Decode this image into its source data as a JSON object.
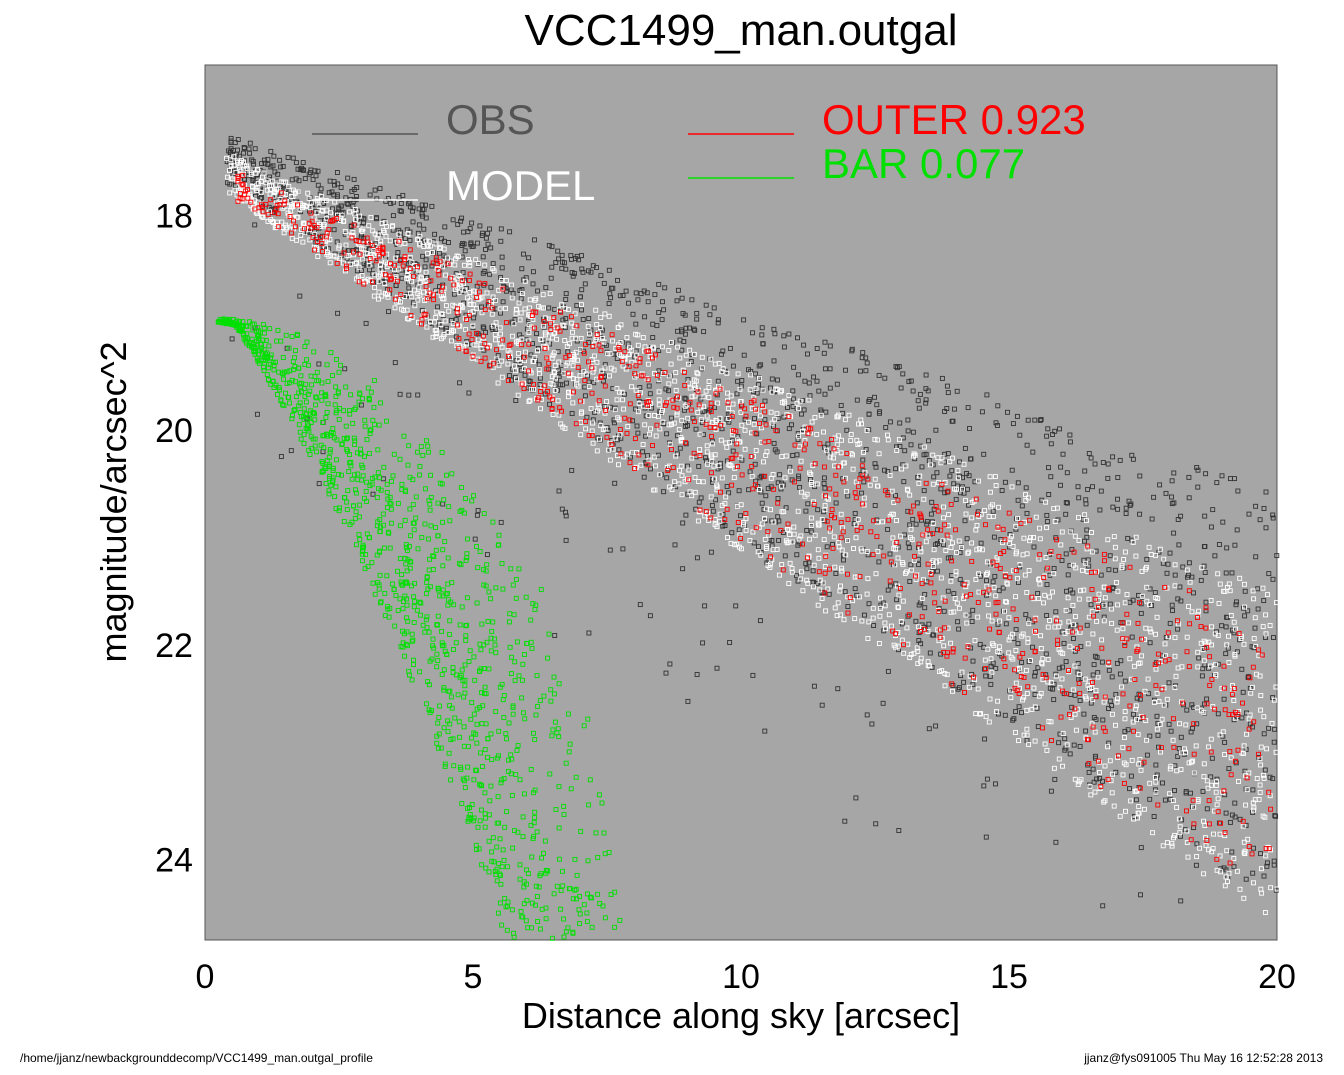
{
  "chart_data": {
    "type": "scatter",
    "title": "VCC1499_man.outgal",
    "xlabel": "Distance along sky [arcsec]",
    "ylabel": "magnitude/arcsec^2",
    "xlim": [
      0,
      20
    ],
    "ylim": [
      16.6,
      24.75
    ],
    "y_inverted": true,
    "x_ticks": [
      "0",
      "5",
      "10",
      "15",
      "20"
    ],
    "y_ticks": [
      "18",
      "20",
      "22",
      "24"
    ],
    "plot_background": "#a6a6a6",
    "legend": {
      "placement": "top",
      "entries": [
        {
          "key": "obs",
          "label": "OBS",
          "color": "#555555"
        },
        {
          "key": "model",
          "label": "MODEL",
          "color": "#ffffff"
        },
        {
          "key": "outer",
          "label": "OUTER  0.923",
          "color": "#ff0000"
        },
        {
          "key": "bar",
          "label": "BAR  0.077",
          "color": "#00e000"
        }
      ]
    },
    "series": [
      {
        "name": "OBS",
        "color": "#333333",
        "marker": "open-square",
        "x": [
          0.5,
          1.0,
          1.5,
          2.0,
          2.5,
          3.0,
          3.5,
          4.0,
          4.5,
          5.0,
          5.5,
          6.0,
          6.5,
          7.0,
          7.5,
          8.0,
          8.5,
          9.0,
          9.5,
          10.0,
          10.5,
          11.0,
          11.5,
          12.0,
          12.5,
          13.0,
          13.5,
          14.0,
          14.5,
          15.0,
          15.5,
          16.0,
          16.5,
          17.0,
          17.5,
          18.0,
          18.5,
          19.0,
          19.5,
          20.0
        ],
        "y": [
          17.5,
          17.62,
          17.75,
          17.88,
          18.01,
          18.14,
          18.27,
          18.4,
          18.53,
          18.66,
          18.79,
          18.92,
          19.05,
          19.18,
          19.31,
          19.44,
          19.57,
          19.7,
          19.83,
          19.96,
          20.09,
          20.22,
          20.35,
          20.48,
          20.61,
          20.74,
          20.87,
          21.0,
          21.13,
          21.26,
          21.39,
          21.52,
          21.65,
          21.78,
          21.91,
          22.04,
          22.17,
          22.3,
          22.43,
          22.56
        ]
      },
      {
        "name": "MODEL",
        "color": "#ffffff",
        "marker": "open-square",
        "x": [
          0.5,
          1.0,
          2.0,
          3.0,
          4.0,
          5.0,
          6.0,
          7.0,
          8.0,
          9.0,
          10.0,
          11.0,
          12.0,
          13.0,
          14.0,
          15.0,
          16.0,
          17.0,
          18.0,
          19.0,
          20.0
        ],
        "y": [
          17.55,
          17.7,
          17.95,
          18.2,
          18.45,
          18.7,
          18.95,
          19.2,
          19.45,
          19.7,
          19.95,
          20.2,
          20.45,
          20.7,
          20.95,
          21.2,
          21.45,
          21.7,
          21.95,
          22.2,
          22.45
        ]
      },
      {
        "name": "OUTER  0.923",
        "color": "#ff0000",
        "marker": "open-square",
        "x": [
          0.5,
          1.0,
          2.0,
          3.0,
          4.0,
          5.0,
          6.0,
          7.0,
          8.0,
          9.0,
          10.0,
          11.0,
          12.0,
          13.0,
          14.0,
          15.0,
          16.0,
          17.0,
          18.0,
          19.0,
          20.0
        ],
        "y": [
          17.7,
          17.85,
          18.1,
          18.38,
          18.66,
          18.94,
          19.22,
          19.5,
          19.78,
          20.06,
          20.34,
          20.62,
          20.9,
          21.18,
          21.46,
          21.74,
          22.02,
          22.3,
          22.58,
          22.86,
          23.1
        ]
      },
      {
        "name": "BAR  0.077",
        "color": "#00e000",
        "marker": "open-square",
        "x": [
          0.2,
          1.0,
          2.0,
          3.0,
          4.0,
          5.0,
          6.0,
          6.5,
          7.0,
          7.5,
          7.8
        ],
        "y": [
          18.95,
          19.0,
          19.15,
          19.45,
          19.9,
          20.45,
          21.2,
          21.7,
          22.4,
          23.4,
          24.6
        ]
      }
    ]
  },
  "footer": {
    "left": "/home/jjanz/newbackgrounddecomp/VCC1499_man.outgal_profile",
    "right": "jjanz@fys091005  Thu May 16 12:52:28 2013"
  }
}
